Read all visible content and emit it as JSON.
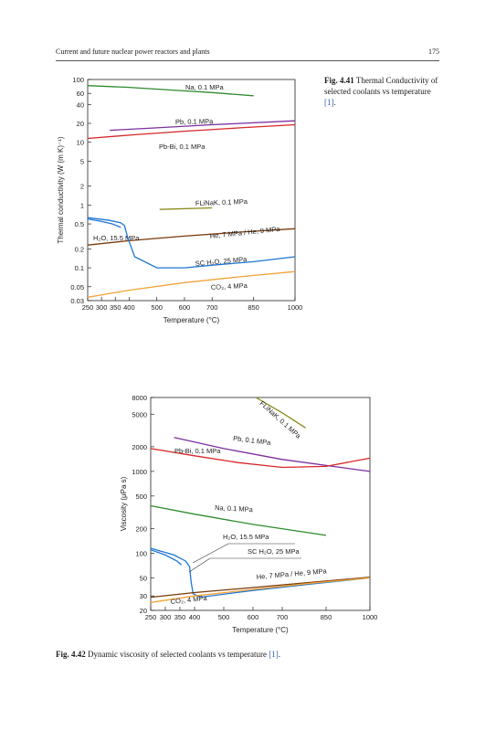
{
  "header": {
    "title": "Current and future nuclear power reactors and plants",
    "page_number": "175"
  },
  "figures": [
    {
      "label": "Fig. 4.41",
      "caption": "Thermal Conductivity of selected coolants vs temperature",
      "ref": "[1]",
      "ref_end": "."
    },
    {
      "label": "Fig. 4.42",
      "caption": "Dynamic viscosity of selected coolants vs temperature",
      "ref": "[1]",
      "ref_end": "."
    }
  ],
  "chart_data": [
    {
      "type": "line",
      "xlabel": "Temperature (°C)",
      "ylabel": "Thermal conductivity (W (m K)⁻¹)",
      "x_scale": "linear",
      "y_scale": "log",
      "xlim": [
        250,
        1000
      ],
      "ylim": [
        0.03,
        100
      ],
      "x_ticks": [
        "250",
        "300",
        "350",
        "400",
        "500",
        "600",
        "700",
        "850",
        "1000"
      ],
      "y_ticks": [
        "100",
        "60",
        "40",
        "20",
        "10",
        "5",
        "2",
        "1",
        "0.5",
        "0.2",
        "0.1",
        "0.05",
        "0.03"
      ],
      "series": [
        {
          "name": "Na, 0.1 MPa",
          "color": "#2e8b2e",
          "x": [
            250,
            400,
            550,
            700,
            850
          ],
          "y": [
            80,
            75,
            68,
            62,
            55
          ]
        },
        {
          "name": "Pb, 0.1 MPa",
          "color": "#7b2fa0",
          "x": [
            330,
            500,
            700,
            1000
          ],
          "y": [
            15.5,
            17,
            19,
            22
          ]
        },
        {
          "name": "Pb-Bi, 0.1 MPa",
          "color": "#d62728",
          "x": [
            250,
            400,
            600,
            800,
            1000
          ],
          "y": [
            11.5,
            13,
            15,
            17,
            19
          ]
        },
        {
          "name": "FLiNaK, 0.1 MPa",
          "color": "#8a8a1a",
          "x": [
            510,
            700
          ],
          "y": [
            0.85,
            0.9
          ]
        },
        {
          "name": "He, 7 MPa / He, 9 MPa",
          "color": "#7a3a0a",
          "x": [
            250,
            400,
            600,
            800,
            1000
          ],
          "y": [
            0.23,
            0.27,
            0.32,
            0.37,
            0.42
          ]
        },
        {
          "name": "H₂O, 15.5 MPa",
          "color": "#1f77d4",
          "x": [
            250,
            300,
            340,
            360,
            370
          ],
          "y": [
            0.6,
            0.55,
            0.5,
            0.46,
            0.44
          ]
        },
        {
          "name": "SC H₂O, 25 MPa",
          "color": "#1f77d4",
          "x": [
            250,
            330,
            370,
            383,
            395,
            420,
            500,
            600,
            700,
            850,
            1000
          ],
          "y": [
            0.63,
            0.57,
            0.52,
            0.47,
            0.3,
            0.15,
            0.1,
            0.1,
            0.11,
            0.125,
            0.15
          ]
        },
        {
          "name": "CO₂, 4 MPa",
          "color": "#f2a33a",
          "x": [
            250,
            400,
            600,
            800,
            1000
          ],
          "y": [
            0.034,
            0.044,
            0.058,
            0.072,
            0.087
          ]
        }
      ]
    },
    {
      "type": "line",
      "xlabel": "Temperature (°C)",
      "ylabel": "Viscosity (μPa s)",
      "x_scale": "linear",
      "y_scale": "log",
      "xlim": [
        250,
        1000
      ],
      "ylim": [
        20,
        8000
      ],
      "x_ticks": [
        "250",
        "300",
        "350",
        "400",
        "500",
        "600",
        "700",
        "850",
        "1000"
      ],
      "y_ticks": [
        "8000",
        "5000",
        "2000",
        "1000",
        "500",
        "200",
        "100",
        "50",
        "30",
        "20"
      ],
      "series": [
        {
          "name": "FLiNaK, 0.1 MPa",
          "color": "#8a8a1a",
          "x": [
            610,
            700,
            780
          ],
          "y": [
            8000,
            5200,
            3400
          ]
        },
        {
          "name": "Pb, 0.1 MPa",
          "color": "#7b2fa0",
          "x": [
            330,
            500,
            700,
            1000
          ],
          "y": [
            2600,
            1900,
            1400,
            1000
          ]
        },
        {
          "name": "Pb-Bi, 0.1 MPa",
          "color": "#d62728",
          "x": [
            250,
            400,
            550,
            700,
            850,
            1000
          ],
          "y": [
            1900,
            1550,
            1280,
            1120,
            1150,
            1450
          ]
        },
        {
          "name": "Na, 0.1 MPa",
          "color": "#2e8b2e",
          "x": [
            250,
            400,
            600,
            850
          ],
          "y": [
            380,
            300,
            225,
            165
          ]
        },
        {
          "name": "H₂O, 15.5 MPa",
          "color": "#1f77d4",
          "x": [
            250,
            300,
            340,
            355
          ],
          "y": [
            110,
            95,
            80,
            72
          ]
        },
        {
          "name": "SC H₂O, 25 MPa",
          "color": "#1f77d4",
          "x": [
            250,
            330,
            370,
            383,
            388,
            395,
            420,
            600,
            800,
            1000
          ],
          "y": [
            115,
            95,
            80,
            68,
            45,
            32,
            29,
            35,
            42,
            50
          ]
        },
        {
          "name": "He, 7 MPa / He, 9 MPa",
          "color": "#7a3a0a",
          "x": [
            250,
            400,
            600,
            800,
            1000
          ],
          "y": [
            29,
            33,
            38,
            44,
            51
          ]
        },
        {
          "name": "CO₂, 4 MPa",
          "color": "#f2a33a",
          "x": [
            250,
            400,
            600,
            800,
            1000
          ],
          "y": [
            25,
            30,
            36,
            43,
            50
          ]
        }
      ]
    }
  ]
}
